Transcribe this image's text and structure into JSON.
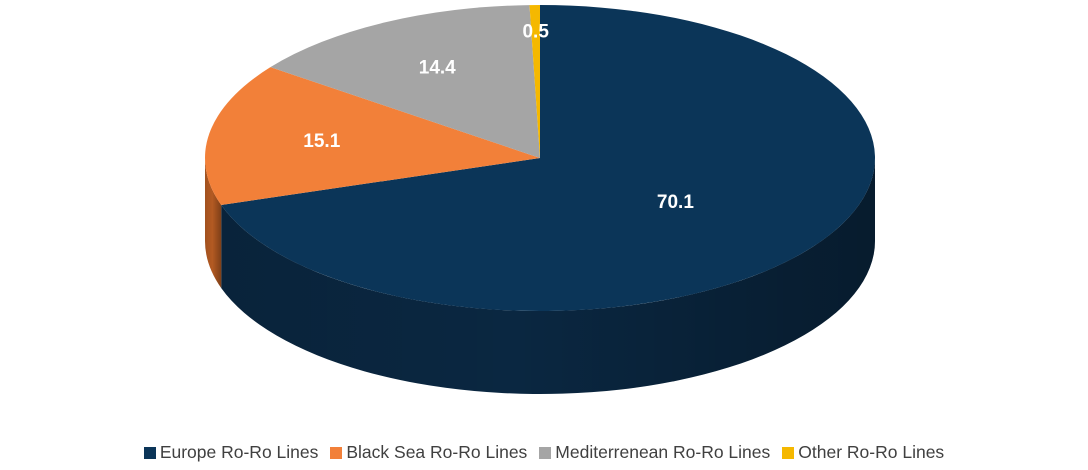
{
  "chart_data": {
    "type": "pie",
    "variant": "3d",
    "categories": [
      "Europe Ro-Ro Lines",
      "Black Sea Ro-Ro Lines",
      "Mediterrenean Ro-Ro Lines",
      "Other Ro-Ro Lines"
    ],
    "values": [
      70.1,
      15.1,
      14.4,
      0.5
    ],
    "labels": [
      "70.1",
      "15.1",
      "14.4",
      "0.5"
    ],
    "colors": [
      "#0b3558",
      "#f28039",
      "#a5a5a5",
      "#f5b800"
    ],
    "side_colors": [
      "#0a2741",
      "#b35a22",
      "#7b7b7b",
      "#b88900"
    ],
    "legend_position": "bottom"
  }
}
